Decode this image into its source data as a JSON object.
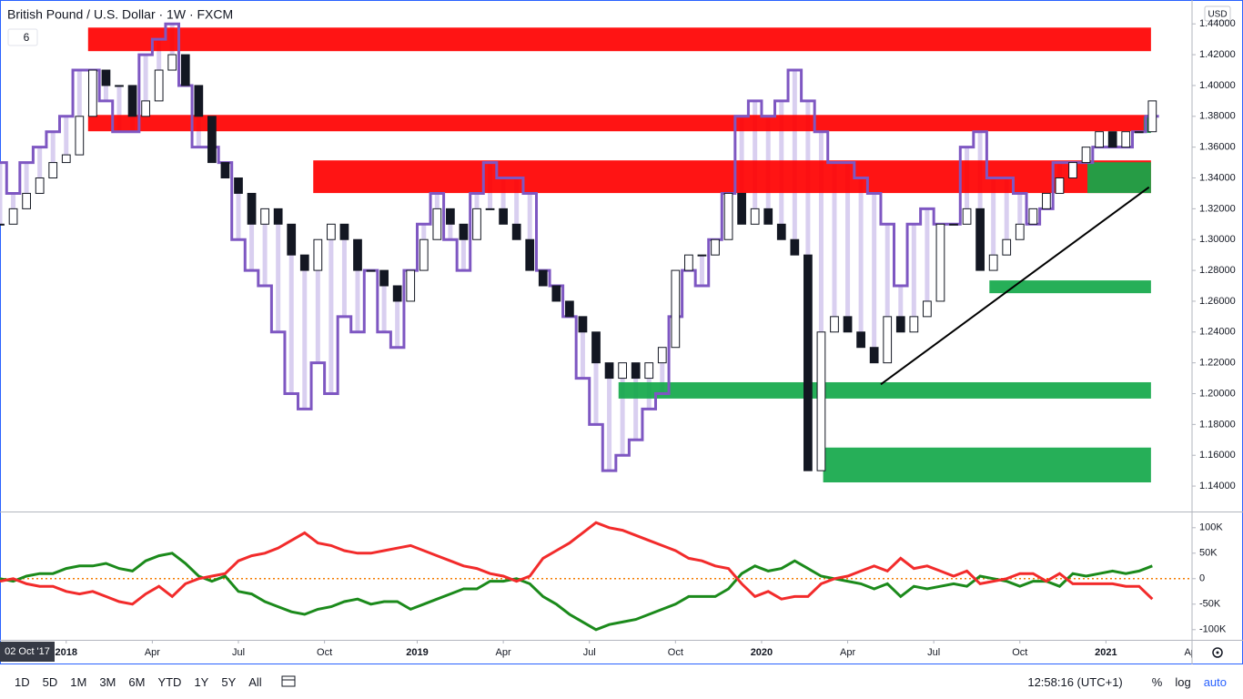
{
  "header": {
    "title": "British Pound / U.S. Dollar · 1W · FXCM",
    "indicator_input": "6",
    "currency": "USD"
  },
  "chart_data": [
    {
      "type": "candlestick",
      "x": [
        -10,
        -8,
        -6,
        -4,
        -2,
        0,
        2,
        4,
        6,
        8,
        10,
        12,
        14,
        16,
        18,
        20,
        22,
        24,
        26,
        28,
        30,
        32,
        34,
        36,
        38,
        40,
        42,
        44,
        46,
        48,
        50,
        52,
        54,
        56,
        58,
        60,
        62,
        64,
        66,
        68,
        70,
        72,
        74,
        76,
        78,
        80,
        82,
        84,
        86,
        88,
        90,
        92,
        94,
        96,
        98,
        100,
        102,
        104,
        106,
        108,
        110,
        112,
        114,
        116,
        118,
        120,
        122,
        124,
        126,
        128,
        130,
        132,
        134,
        136,
        138,
        140,
        142,
        144,
        146,
        148,
        150,
        152,
        154,
        156,
        158,
        160,
        162,
        164
      ],
      "values": [
        1.31,
        1.32,
        1.33,
        1.34,
        1.35,
        1.355,
        1.38,
        1.41,
        1.4,
        1.4,
        1.38,
        1.39,
        1.41,
        1.42,
        1.4,
        1.38,
        1.35,
        1.34,
        1.33,
        1.31,
        1.32,
        1.31,
        1.29,
        1.28,
        1.3,
        1.31,
        1.3,
        1.28,
        1.28,
        1.27,
        1.26,
        1.28,
        1.3,
        1.32,
        1.31,
        1.3,
        1.32,
        1.32,
        1.31,
        1.3,
        1.28,
        1.27,
        1.26,
        1.25,
        1.24,
        1.22,
        1.21,
        1.22,
        1.21,
        1.22,
        1.23,
        1.28,
        1.29,
        1.29,
        1.3,
        1.33,
        1.31,
        1.32,
        1.31,
        1.3,
        1.29,
        1.15,
        1.24,
        1.25,
        1.24,
        1.23,
        1.22,
        1.25,
        1.24,
        1.25,
        1.26,
        1.31,
        1.31,
        1.32,
        1.28,
        1.29,
        1.3,
        1.31,
        1.32,
        1.33,
        1.34,
        1.35,
        1.36,
        1.37,
        1.36,
        1.37,
        1.37,
        1.39
      ],
      "overlay": {
        "color": "#7e57c2",
        "values": [
          1.35,
          1.33,
          1.35,
          1.36,
          1.37,
          1.38,
          1.41,
          1.41,
          1.39,
          1.37,
          1.37,
          1.42,
          1.43,
          1.44,
          1.4,
          1.36,
          1.36,
          1.35,
          1.3,
          1.28,
          1.27,
          1.24,
          1.2,
          1.19,
          1.22,
          1.2,
          1.25,
          1.24,
          1.28,
          1.24,
          1.23,
          1.28,
          1.31,
          1.33,
          1.3,
          1.28,
          1.33,
          1.35,
          1.34,
          1.34,
          1.33,
          1.28,
          1.27,
          1.25,
          1.21,
          1.18,
          1.15,
          1.16,
          1.17,
          1.19,
          1.2,
          1.25,
          1.28,
          1.27,
          1.3,
          1.33,
          1.38,
          1.39,
          1.38,
          1.39,
          1.41,
          1.39,
          1.37,
          1.35,
          1.35,
          1.34,
          1.33,
          1.31,
          1.27,
          1.31,
          1.32,
          1.31,
          1.31,
          1.36,
          1.37,
          1.34,
          1.34,
          1.33,
          1.31,
          1.32,
          1.35,
          1.35,
          1.35,
          1.36,
          1.36,
          1.36,
          1.37,
          1.38
        ]
      },
      "zones": [
        {
          "color": "#ff0000",
          "from": 3.3,
          "to": 163.8,
          "low": 1.4223,
          "high": 1.4376
        },
        {
          "color": "#ff0000",
          "from": 3.3,
          "to": 163.8,
          "low": 1.3703,
          "high": 1.3809
        },
        {
          "color": "#ff0000",
          "from": 37.3,
          "to": 163.8,
          "low": 1.3302,
          "high": 1.3514
        },
        {
          "color": "#13a84a",
          "from": 162.7,
          "to": 163.8,
          "low": 1.3692,
          "high": 1.3797
        },
        {
          "color": "#13a84a",
          "from": 154.2,
          "to": 163.8,
          "low": 1.3302,
          "high": 1.3502
        },
        {
          "color": "#13a84a",
          "from": 139.4,
          "to": 163.8,
          "low": 1.2652,
          "high": 1.2735
        },
        {
          "color": "#13a84a",
          "from": 83.4,
          "to": 163.8,
          "low": 1.1968,
          "high": 1.2074
        },
        {
          "color": "#13a84a",
          "from": 114.3,
          "to": 163.8,
          "low": 1.1424,
          "high": 1.165
        }
      ],
      "trendline": {
        "color": "#000000",
        "x": [
          123,
          163.5
        ],
        "y": [
          1.206,
          1.334
        ]
      },
      "xlim": [
        -10,
        170
      ],
      "xticks": [
        {
          "value": 0,
          "label": "2018"
        },
        {
          "value": 13,
          "label": "Apr"
        },
        {
          "value": 26,
          "label": "Jul"
        },
        {
          "value": 39,
          "label": "Oct"
        },
        {
          "value": 53,
          "label": "2019"
        },
        {
          "value": 66,
          "label": "Apr"
        },
        {
          "value": 79,
          "label": "Jul"
        },
        {
          "value": 92,
          "label": "Oct"
        },
        {
          "value": 105,
          "label": "2020"
        },
        {
          "value": 118,
          "label": "Apr"
        },
        {
          "value": 131,
          "label": "Jul"
        },
        {
          "value": 144,
          "label": "Oct"
        },
        {
          "value": 157,
          "label": "2021"
        },
        {
          "value": 170,
          "label": "Apr"
        }
      ],
      "x_start_label": "02 Oct '17",
      "ylim": [
        1.1235,
        1.4555
      ],
      "yticks": [
        {
          "value": 1.14,
          "label": "1.14000"
        },
        {
          "value": 1.16,
          "label": "1.16000"
        },
        {
          "value": 1.18,
          "label": "1.18000"
        },
        {
          "value": 1.2,
          "label": "1.20000"
        },
        {
          "value": 1.22,
          "label": "1.22000"
        },
        {
          "value": 1.24,
          "label": "1.24000"
        },
        {
          "value": 1.26,
          "label": "1.26000"
        },
        {
          "value": 1.28,
          "label": "1.28000"
        },
        {
          "value": 1.3,
          "label": "1.30000"
        },
        {
          "value": 1.32,
          "label": "1.32000"
        },
        {
          "value": 1.34,
          "label": "1.34000"
        },
        {
          "value": 1.36,
          "label": "1.36000"
        },
        {
          "value": 1.38,
          "label": "1.38000"
        },
        {
          "value": 1.4,
          "label": "1.40000"
        },
        {
          "value": 1.42,
          "label": "1.42000"
        },
        {
          "value": 1.44,
          "label": "1.44000"
        }
      ]
    },
    {
      "type": "line",
      "series": [
        {
          "color": "#1b8a1b",
          "values": [
            0,
            -5,
            5,
            10,
            10,
            20,
            25,
            25,
            30,
            20,
            15,
            35,
            45,
            50,
            30,
            5,
            -5,
            5,
            -25,
            -30,
            -45,
            -55,
            -65,
            -70,
            -60,
            -55,
            -45,
            -40,
            -50,
            -45,
            -45,
            -60,
            -50,
            -40,
            -30,
            -20,
            -20,
            -5,
            -5,
            0,
            -10,
            -35,
            -50,
            -70,
            -85,
            -100,
            -90,
            -85,
            -80,
            -70,
            -60,
            -50,
            -35,
            -35,
            -35,
            -20,
            10,
            25,
            15,
            20,
            35,
            20,
            5,
            0,
            -5,
            -10,
            -20,
            -10,
            -35,
            -15,
            -20,
            -15,
            -10,
            -15,
            5,
            0,
            -5,
            -15,
            -5,
            -5,
            -15,
            10,
            5,
            10,
            15,
            10,
            15,
            25
          ]
        },
        {
          "color": "#f22b2b",
          "values": [
            -5,
            0,
            -10,
            -15,
            -15,
            -25,
            -30,
            -25,
            -35,
            -45,
            -50,
            -30,
            -15,
            -35,
            -10,
            0,
            5,
            10,
            35,
            45,
            50,
            60,
            75,
            90,
            70,
            65,
            55,
            50,
            50,
            55,
            60,
            65,
            55,
            45,
            35,
            25,
            20,
            10,
            5,
            -5,
            5,
            40,
            55,
            70,
            90,
            110,
            100,
            95,
            85,
            75,
            65,
            55,
            40,
            35,
            25,
            20,
            -10,
            -35,
            -25,
            -40,
            -35,
            -35,
            -10,
            0,
            5,
            15,
            25,
            15,
            40,
            20,
            25,
            15,
            5,
            15,
            -10,
            -5,
            0,
            10,
            10,
            -5,
            10,
            -10,
            -10,
            -10,
            -10,
            -15,
            -15,
            -40
          ]
        }
      ],
      "zero_line": {
        "value": 0,
        "color": "#f57c00"
      },
      "ylim": [
        -120000,
        130000
      ],
      "value_unit": 1000,
      "yticks": [
        {
          "value": 100000,
          "label": "100K"
        },
        {
          "value": 50000,
          "label": "50K"
        },
        {
          "value": 0,
          "label": "0"
        },
        {
          "value": -50000,
          "label": "-50K"
        },
        {
          "value": -100000,
          "label": "-100K"
        }
      ]
    }
  ],
  "toolbar": {
    "ranges": [
      "1D",
      "5D",
      "1M",
      "3M",
      "6M",
      "YTD",
      "1Y",
      "5Y",
      "All"
    ],
    "clock": "12:58:16 (UTC+1)",
    "options": [
      "%",
      "log",
      "auto"
    ]
  }
}
